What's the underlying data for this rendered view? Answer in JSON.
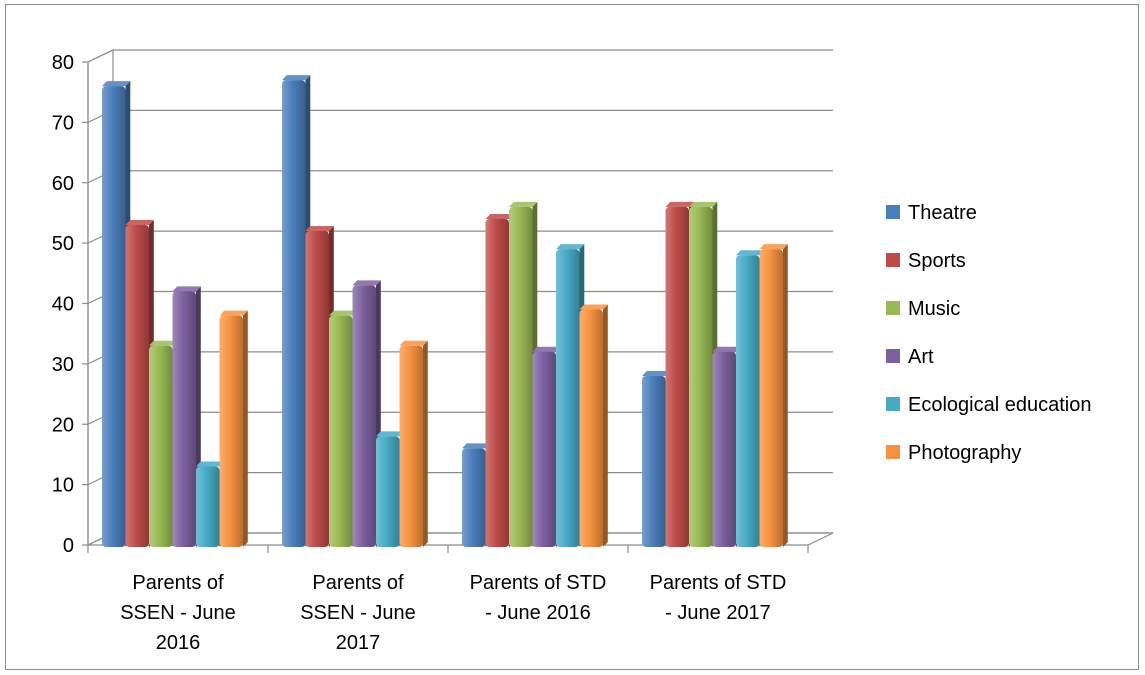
{
  "chart_data": {
    "type": "bar",
    "style": "3d-clustered-column",
    "categories": [
      [
        "Parents of",
        "SSEN - June",
        "2016"
      ],
      [
        "Parents of",
        "SSEN - June",
        "2017"
      ],
      [
        "Parents of STD",
        "- June 2016"
      ],
      [
        "Parents of STD",
        "- June 2017"
      ]
    ],
    "series": [
      {
        "name": "Theatre",
        "color": "#4a7ebb",
        "values": [
          76,
          77,
          16,
          28
        ]
      },
      {
        "name": "Sports",
        "color": "#be4b48",
        "values": [
          53,
          52,
          54,
          56
        ]
      },
      {
        "name": "Music",
        "color": "#98b954",
        "values": [
          33,
          38,
          56,
          56
        ]
      },
      {
        "name": "Art",
        "color": "#7d60a0",
        "values": [
          42,
          43,
          32,
          32
        ]
      },
      {
        "name": "Ecological education",
        "color": "#46aac5",
        "values": [
          13,
          18,
          49,
          48
        ]
      },
      {
        "name": "Photography",
        "color": "#f69240",
        "values": [
          38,
          33,
          39,
          49
        ]
      }
    ],
    "yticks": [
      "0",
      "10",
      "20",
      "30",
      "40",
      "50",
      "60",
      "70",
      "80"
    ],
    "ylim": [
      0,
      80
    ],
    "title": "",
    "xlabel": "",
    "ylabel": "",
    "grid": true,
    "legend": "right"
  }
}
